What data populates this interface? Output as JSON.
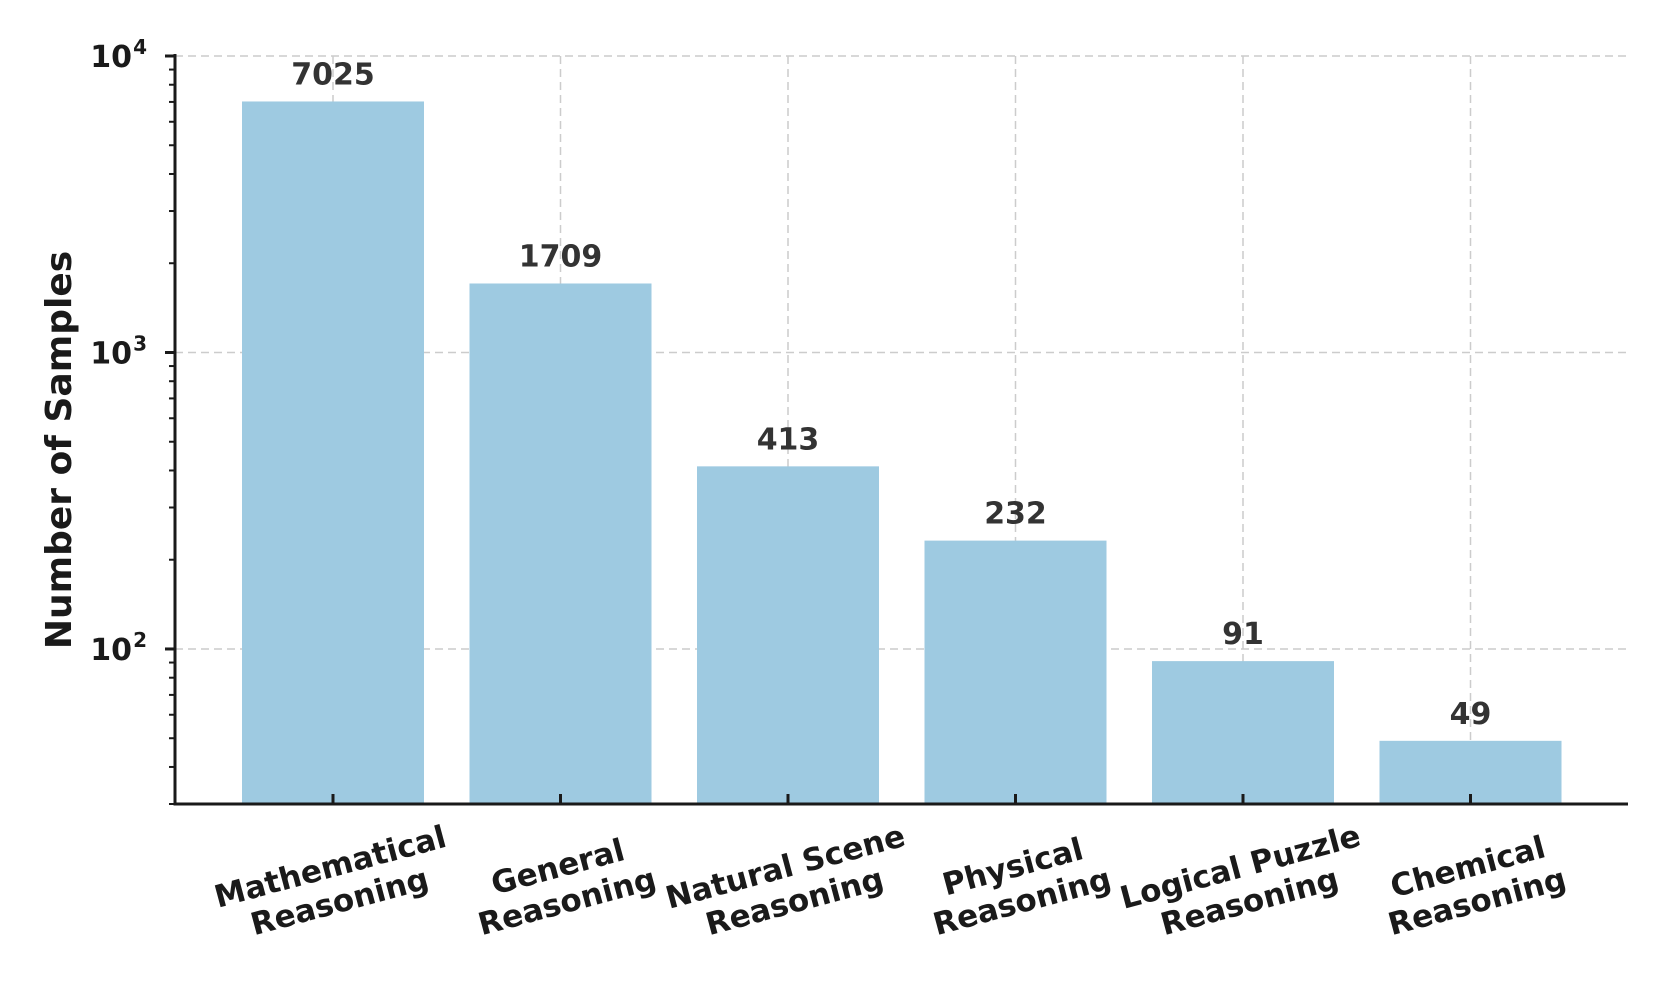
{
  "chart_data": {
    "type": "bar",
    "categories": [
      "Mathematical\nReasoning",
      "General\nReasoning",
      "Natural Scene\nReasoning",
      "Physical\nReasoning",
      "Logical Puzzle\nReasoning",
      "Chemical\nReasoning"
    ],
    "values": [
      7025,
      1709,
      413,
      232,
      91,
      49
    ],
    "data_labels": [
      "7025",
      "1709",
      "413",
      "232",
      "91",
      "49"
    ],
    "title": "",
    "xlabel": "",
    "ylabel": "Number of Samples",
    "yscale": "log",
    "ylim": [
      30,
      10000
    ],
    "yticks": [
      {
        "value": 100,
        "base": "10",
        "exp": "2"
      },
      {
        "value": 1000,
        "base": "10",
        "exp": "3"
      },
      {
        "value": 10000,
        "base": "10",
        "exp": "4"
      }
    ],
    "grid": true,
    "grid_style": "dashed",
    "bar_color": "#9ecae1",
    "legend": "none"
  }
}
